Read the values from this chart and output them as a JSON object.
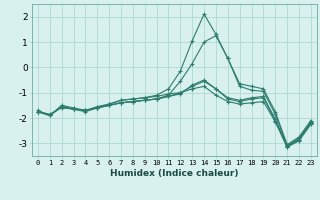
{
  "xlabel": "Humidex (Indice chaleur)",
  "x": [
    0,
    1,
    2,
    3,
    4,
    5,
    6,
    7,
    8,
    9,
    10,
    11,
    12,
    13,
    14,
    15,
    16,
    17,
    18,
    19,
    20,
    21,
    22,
    23
  ],
  "lines": [
    [
      -1.7,
      -1.9,
      -1.5,
      -1.6,
      -1.7,
      -1.55,
      -1.45,
      -1.3,
      -1.25,
      -1.2,
      -1.15,
      -1.05,
      -1.0,
      -0.75,
      -0.55,
      -0.85,
      -1.25,
      -1.35,
      -1.25,
      -1.2,
      -2.1,
      -3.15,
      -2.85,
      -2.2
    ],
    [
      -1.75,
      -1.85,
      -1.6,
      -1.65,
      -1.7,
      -1.6,
      -1.5,
      -1.4,
      -1.35,
      -1.3,
      -1.25,
      -1.1,
      -0.55,
      0.15,
      1.0,
      1.25,
      0.35,
      -0.75,
      -0.9,
      -0.95,
      -1.85,
      -3.1,
      -2.8,
      -2.15
    ],
    [
      -1.75,
      -1.9,
      -1.55,
      -1.65,
      -1.75,
      -1.6,
      -1.45,
      -1.3,
      -1.25,
      -1.2,
      -1.1,
      -0.85,
      -0.15,
      1.05,
      2.1,
      1.3,
      0.35,
      -0.65,
      -0.75,
      -0.85,
      -1.75,
      -3.05,
      -2.75,
      -2.1
    ],
    [
      -1.75,
      -1.9,
      -1.55,
      -1.65,
      -1.7,
      -1.6,
      -1.5,
      -1.4,
      -1.35,
      -1.3,
      -1.25,
      -1.15,
      -1.05,
      -0.7,
      -0.5,
      -0.85,
      -1.2,
      -1.3,
      -1.2,
      -1.15,
      -2.05,
      -3.1,
      -2.85,
      -2.2
    ],
    [
      -1.75,
      -1.9,
      -1.55,
      -1.65,
      -1.7,
      -1.6,
      -1.5,
      -1.4,
      -1.35,
      -1.3,
      -1.25,
      -1.15,
      -1.0,
      -0.85,
      -0.75,
      -1.1,
      -1.35,
      -1.45,
      -1.4,
      -1.35,
      -2.15,
      -3.15,
      -2.9,
      -2.25
    ]
  ],
  "line_color": "#2d7d6e",
  "bg_color": "#d8f0ee",
  "grid_color": "#a8d4ce",
  "ylim": [
    -3.5,
    2.5
  ],
  "yticks": [
    -3,
    -2,
    -1,
    0,
    1,
    2
  ],
  "xticks": [
    0,
    1,
    2,
    3,
    4,
    5,
    6,
    7,
    8,
    9,
    10,
    11,
    12,
    13,
    14,
    15,
    16,
    17,
    18,
    19,
    20,
    21,
    22,
    23
  ]
}
